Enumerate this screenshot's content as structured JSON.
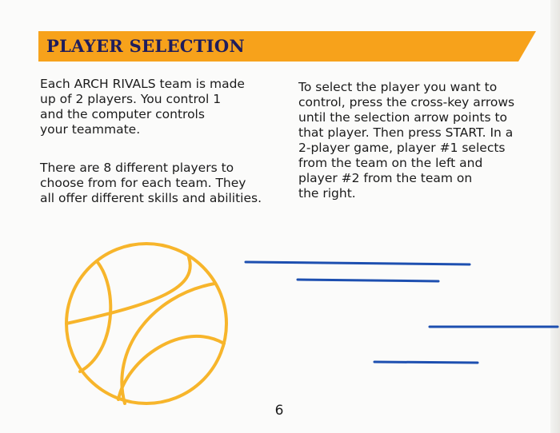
{
  "header": {
    "title": "PLAYER SELECTION",
    "banner_color": "#f7a21b",
    "title_color": "#1f1d5c"
  },
  "left_column": {
    "paragraph1": [
      "Each ARCH RIVALS team is made",
      "up of 2 players. You control 1",
      "and the computer controls",
      "your teammate."
    ],
    "paragraph2": [
      "There are 8 different players to",
      "choose from for each team. They",
      "all offer different skills and abilities."
    ]
  },
  "right_column": {
    "paragraph1": [
      "To select the player you want to",
      "control, press the cross-key arrows",
      "until the selection arrow points to",
      "that player. Then press START. In a",
      "2-player game, player #1 selects",
      "from the team on the left and",
      "player #2 from the team on",
      "the right."
    ]
  },
  "illustration": {
    "icon": "basketball-icon",
    "ball_color": "#f7b52b",
    "speed_line_color": "#1d4fb0"
  },
  "footer": {
    "page_number": "6"
  }
}
